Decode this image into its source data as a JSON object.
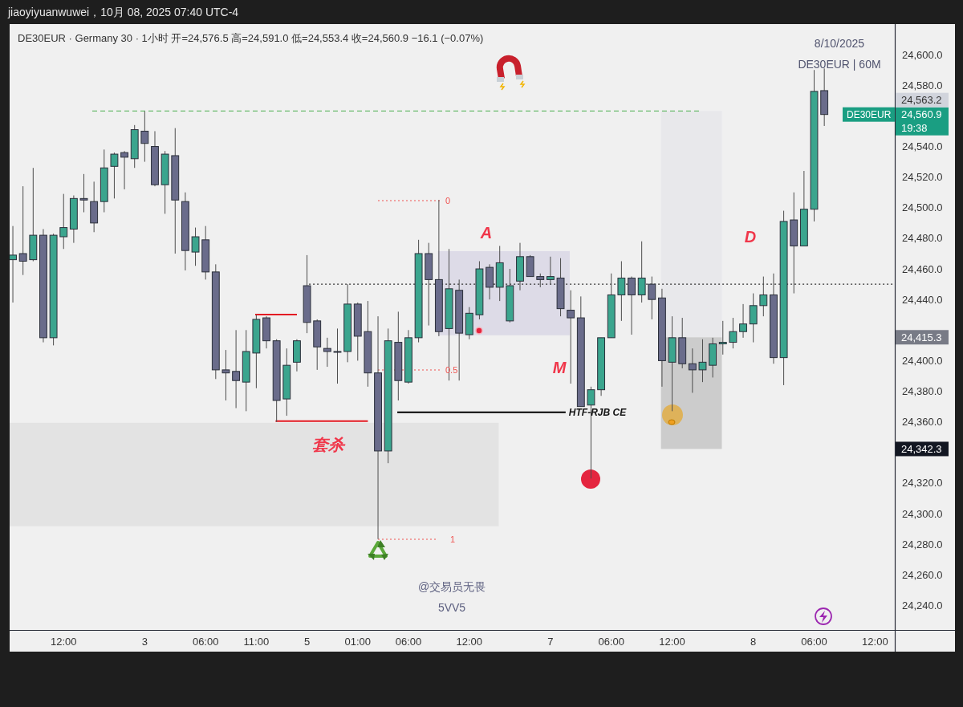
{
  "chart_data": {
    "type": "candlestick",
    "title": "jiaoyiyuanwuwei，10月 08, 2025 07:40 UTC-4",
    "subtitle": "DE30EUR · Germany 30 · 1小时 开=24,576.5 高=24,591.0 低=24,553.4 收=24,560.9 −16.1 (−0.07%)",
    "categories": [
      null,
      null,
      null,
      null,
      null,
      "12:00",
      null,
      null,
      null,
      null,
      null,
      null,
      null,
      "3",
      null,
      null,
      null,
      null,
      null,
      "06:00",
      null,
      null,
      null,
      null,
      "11:00",
      null,
      null,
      null,
      null,
      "5",
      null,
      null,
      null,
      null,
      "01:00",
      null,
      null,
      null,
      null,
      "06:00",
      null,
      null,
      null,
      null,
      null,
      "12:00",
      null,
      null,
      null,
      null,
      null,
      null,
      null,
      "7",
      null,
      null,
      null,
      null,
      null,
      "06:00",
      null,
      null,
      null,
      null,
      null,
      "12:00",
      null,
      null,
      null,
      null,
      null,
      null,
      null,
      "8",
      null,
      null,
      null,
      null,
      null,
      "06:00",
      null,
      null,
      null,
      null,
      null,
      "12:00",
      null
    ],
    "ohlc": [
      [
        24466,
        24488,
        24438,
        24469
      ],
      [
        24470,
        24514,
        24456,
        24465
      ],
      [
        24466,
        24526,
        24465,
        24482
      ],
      [
        24482,
        24486,
        24412,
        24415
      ],
      [
        24415,
        24483,
        24410,
        24482
      ],
      [
        24481,
        24509,
        24473,
        24487
      ],
      [
        24486,
        24508,
        24477,
        24506
      ],
      [
        24506,
        24522,
        24497,
        24505
      ],
      [
        24504,
        24517,
        24484,
        24490
      ],
      [
        24504,
        24538,
        24497,
        24526
      ],
      [
        24527,
        24536,
        24506,
        24535
      ],
      [
        24536,
        24537,
        24512,
        24533
      ],
      [
        24532,
        24554,
        24526,
        24551
      ],
      [
        24550,
        24563,
        24530,
        24542
      ],
      [
        24540,
        24550,
        24514,
        24515
      ],
      [
        24515,
        24537,
        24496,
        24535
      ],
      [
        24534,
        24552,
        24470,
        24505
      ],
      [
        24504,
        24510,
        24459,
        24472
      ],
      [
        24471,
        24487,
        24462,
        24481
      ],
      [
        24479,
        24488,
        24453,
        24458
      ],
      [
        24458,
        24463,
        24388,
        24394
      ],
      [
        24394,
        24407,
        24374,
        24392
      ],
      [
        24393,
        24420,
        24369,
        24387
      ],
      [
        24386,
        24420,
        24367,
        24406
      ],
      [
        24405,
        24430,
        24382,
        24427
      ],
      [
        24428,
        24429,
        24408,
        24413
      ],
      [
        24413,
        24414,
        24360,
        24374
      ],
      [
        24375,
        24408,
        24364,
        24397
      ],
      [
        24399,
        24414,
        24393,
        24413
      ],
      [
        24449,
        24469,
        24418,
        24425
      ],
      [
        24426,
        24427,
        24394,
        24409
      ],
      [
        24408,
        24415,
        24396,
        24406
      ],
      [
        24406,
        24421,
        24385,
        24406
      ],
      [
        24406,
        24450,
        24399,
        24437
      ],
      [
        24437,
        24438,
        24400,
        24416
      ],
      [
        24419,
        24439,
        24383,
        24392
      ],
      [
        24392,
        24429,
        24283.4,
        24341
      ],
      [
        24341,
        24421,
        24333,
        24413
      ],
      [
        24412,
        24432,
        24374,
        24387
      ],
      [
        24386,
        24420,
        24385,
        24415
      ],
      [
        24415,
        24479,
        24412,
        24470
      ],
      [
        24470,
        24477,
        24423,
        24453
      ],
      [
        24453,
        24505,
        24416,
        24419
      ],
      [
        24421,
        24473,
        24387,
        24447
      ],
      [
        24446,
        24453,
        24387,
        24418
      ],
      [
        24417,
        24435,
        24414,
        24431
      ],
      [
        24430,
        24465,
        24427,
        24460
      ],
      [
        24461,
        24463,
        24440,
        24448
      ],
      [
        24448,
        24475,
        24439,
        24464
      ],
      [
        24426,
        24460,
        24425,
        24449
      ],
      [
        24452,
        24477,
        24446,
        24468
      ],
      [
        24468,
        24469,
        24455,
        24455
      ],
      [
        24455,
        24457,
        24448,
        24453
      ],
      [
        24453,
        24468,
        24450,
        24455
      ],
      [
        24454,
        24467,
        24429,
        24434
      ],
      [
        24433,
        24446,
        24385,
        24428
      ],
      [
        24428,
        24442,
        24370,
        24370
      ],
      [
        24371,
        24383,
        24323,
        24381
      ],
      [
        24381,
        24415,
        24377,
        24415
      ],
      [
        24415,
        24457,
        24415,
        24443
      ],
      [
        24443,
        24465,
        24426,
        24454
      ],
      [
        24454,
        24455,
        24417,
        24443
      ],
      [
        24443,
        24478,
        24438,
        24454
      ],
      [
        24450,
        24455,
        24427,
        24440
      ],
      [
        24441,
        24447,
        24383,
        24400
      ],
      [
        24399,
        24429,
        24367,
        24415
      ],
      [
        24415,
        24428,
        24395,
        24398
      ],
      [
        24398,
        24408,
        24379,
        24394
      ],
      [
        24394,
        24414,
        24386,
        24399
      ],
      [
        24397,
        24415,
        24389,
        24411
      ],
      [
        24411,
        24426,
        24404,
        24412
      ],
      [
        24412,
        24428,
        24408,
        24419
      ],
      [
        24419,
        24437,
        24415,
        24424
      ],
      [
        24424,
        24444,
        24412,
        24436
      ],
      [
        24436,
        24455,
        24429,
        24443
      ],
      [
        24443,
        24457,
        24398,
        24402
      ],
      [
        24402,
        24498,
        24384,
        24491
      ],
      [
        24492,
        24510,
        24444,
        24475
      ],
      [
        24475,
        24524,
        24475,
        24499
      ],
      [
        24499,
        24590,
        24491,
        24576
      ],
      [
        24576.5,
        24591.0,
        24553.4,
        24560.9
      ],
      null,
      null,
      null,
      null,
      null,
      null
    ],
    "colors": [
      "#3ba58e",
      "#6a6c8b",
      "#3ba58e",
      "#6a6c8b",
      "#3ba58e",
      "#3ba58e",
      "#3ba58e",
      "#6a6c8b",
      "#6a6c8b",
      "#3ba58e",
      "#3ba58e",
      "#6a6c8b",
      "#3ba58e",
      "#6a6c8b",
      "#6a6c8b",
      "#3ba58e",
      "#6a6c8b",
      "#6a6c8b",
      "#3ba58e",
      "#6a6c8b",
      "#6a6c8b",
      "#6a6c8b",
      "#6a6c8b",
      "#3ba58e",
      "#3ba58e",
      "#6a6c8b",
      "#6a6c8b",
      "#3ba58e",
      "#3ba58e",
      "#6a6c8b",
      "#6a6c8b",
      "#6a6c8b",
      "#6a6c8b",
      "#3ba58e",
      "#6a6c8b",
      "#6a6c8b",
      "#6a6c8b",
      "#3ba58e",
      "#6a6c8b",
      "#3ba58e",
      "#3ba58e",
      "#6a6c8b",
      "#6a6c8b",
      "#3ba58e",
      "#6a6c8b",
      "#3ba58e",
      "#3ba58e",
      "#6a6c8b",
      "#3ba58e",
      "#3ba58e",
      "#3ba58e",
      "#6a6c8b",
      "#6a6c8b",
      "#3ba58e",
      "#6a6c8b",
      "#6a6c8b",
      "#6a6c8b",
      "#3ba58e",
      "#3ba58e",
      "#3ba58e",
      "#3ba58e",
      "#6a6c8b",
      "#3ba58e",
      "#6a6c8b",
      "#6a6c8b",
      "#3ba58e",
      "#6a6c8b",
      "#6a6c8b",
      "#3ba58e",
      "#3ba58e",
      "#3ba58e",
      "#3ba58e",
      "#3ba58e",
      "#3ba58e",
      "#3ba58e",
      "#6a6c8b",
      "#3ba58e",
      "#6a6c8b",
      "#3ba58e",
      "#3ba58e",
      "#6a6c8b",
      null,
      null,
      null,
      null,
      null,
      null
    ],
    "ylim": [
      24224,
      24620
    ],
    "yticks": [
      {
        "value": 24240,
        "label": "24,240.0"
      },
      {
        "value": 24260,
        "label": "24,260.0"
      },
      {
        "value": 24280,
        "label": "24,280.0"
      },
      {
        "value": 24300,
        "label": "24,300.0"
      },
      {
        "value": 24320,
        "label": "24,320.0"
      },
      {
        "value": 24360,
        "label": "24,360.0"
      },
      {
        "value": 24380,
        "label": "24,380.0"
      },
      {
        "value": 24400,
        "label": "24,400.0"
      },
      {
        "value": 24440,
        "label": "24,440.0"
      },
      {
        "value": 24460,
        "label": "24,460.0"
      },
      {
        "value": 24480,
        "label": "24,480.0"
      },
      {
        "value": 24500,
        "label": "24,500.0"
      },
      {
        "value": 24520,
        "label": "24,520.0"
      },
      {
        "value": 24540,
        "label": "24,540.0"
      },
      {
        "value": 24580,
        "label": "24,580.0"
      },
      {
        "value": 24600,
        "label": "24,600.0"
      }
    ],
    "ref_lines": [
      {
        "axis": "y",
        "value": 24563.2,
        "color": "#4caf50",
        "line_style": "dashed"
      },
      {
        "axis": "y",
        "value": 24450,
        "color": "#333333",
        "line_style": "dotted"
      },
      {
        "axis": "y",
        "value": 24360.5,
        "color": "#e31b23",
        "line_style": "solid"
      },
      {
        "axis": "y",
        "value": 24366.3,
        "label": "HTF-RJB CE",
        "color": "#000000",
        "line_style": "solid"
      }
    ],
    "bands": [
      {
        "axis": "y",
        "from": 24291.8,
        "to": 24359.4,
        "color": "#e3e3e3"
      },
      {
        "axis": "y",
        "from": 24416.6,
        "to": 24471.6,
        "color": "#dddbe7"
      },
      {
        "axis": "y",
        "from": 24415.3,
        "to": 24563.2,
        "color": "#e8e8eb"
      },
      {
        "axis": "y",
        "from": 24342.3,
        "to": 24415.3,
        "color": "#cccccc"
      }
    ],
    "annotations": [
      "A",
      "M",
      "D",
      "套杀",
      "8/10/2025",
      "DE30EUR | 60M",
      "@交易员无畏",
      "5VV5",
      "DE30EUR",
      "24,560.9",
      "19:38",
      "24,415.3",
      "24,342.3",
      "24,563.2",
      "0",
      {
        "text": "0.5",
        "y": 24394.2
      },
      "1"
    ]
  }
}
